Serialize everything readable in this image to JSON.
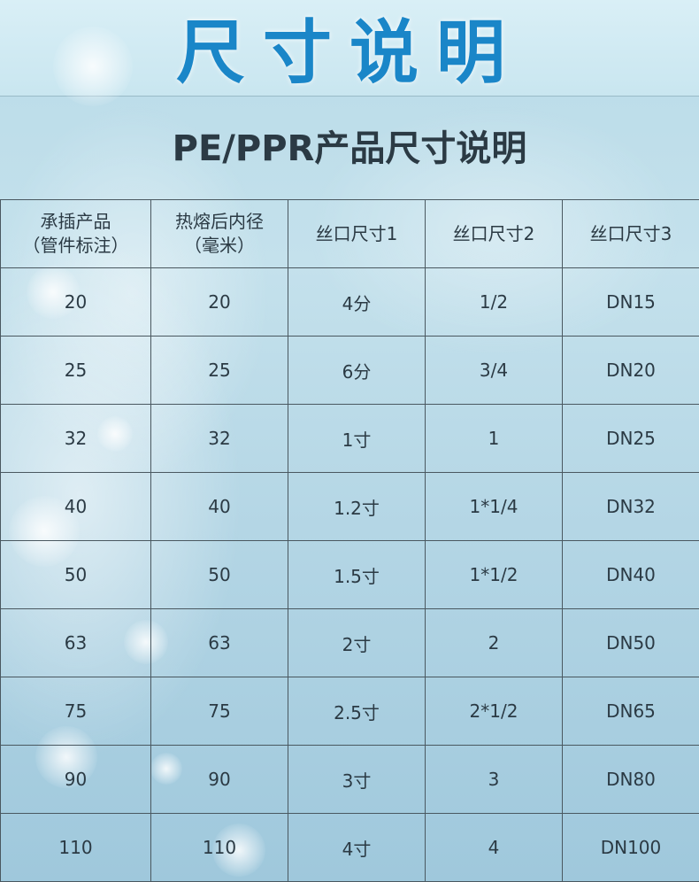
{
  "header": {
    "title": "尺寸说明",
    "subtitle": "PE/PPR产品尺寸说明"
  },
  "colors": {
    "title": "#1a86c8",
    "subtitle": "#2b3a44",
    "grid": "#4a5860",
    "background": "#b9dbe8"
  },
  "table": {
    "headers": [
      [
        "承插产品",
        "（管件标注）"
      ],
      [
        "热熔后内径",
        "（毫米）"
      ],
      [
        "丝口尺寸1"
      ],
      [
        "丝口尺寸2"
      ],
      [
        "丝口尺寸3"
      ]
    ],
    "rows": [
      [
        "20",
        "20",
        "4分",
        "1/2",
        "DN15"
      ],
      [
        "25",
        "25",
        "6分",
        "3/4",
        "DN20"
      ],
      [
        "32",
        "32",
        "1寸",
        "1",
        "DN25"
      ],
      [
        "40",
        "40",
        "1.2寸",
        "1*1/4",
        "DN32"
      ],
      [
        "50",
        "50",
        "1.5寸",
        "1*1/2",
        "DN40"
      ],
      [
        "63",
        "63",
        "2寸",
        "2",
        "DN50"
      ],
      [
        "75",
        "75",
        "2.5寸",
        "2*1/2",
        "DN65"
      ],
      [
        "90",
        "90",
        "3寸",
        "3",
        "DN80"
      ],
      [
        "110",
        "110",
        "4寸",
        "4",
        "DN100"
      ]
    ]
  }
}
